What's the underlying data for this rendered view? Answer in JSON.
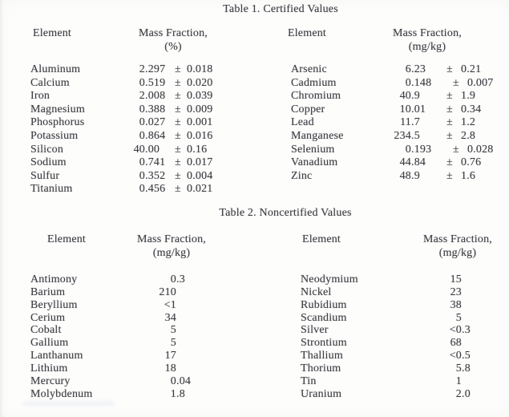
{
  "page": {
    "background": "#fdfdfc",
    "ink_color": "#3f4045"
  },
  "pm_symbol": "±",
  "table1": {
    "title": "Table 1. Certified Values",
    "panels": [
      {
        "element_header": "Element",
        "mass_fraction_header": "Mass Fraction,",
        "unit": "(%)",
        "rows": [
          {
            "element": "Aluminum",
            "value": "2.297",
            "uncertainty": "0.018"
          },
          {
            "element": "Calcium",
            "value": "0.519",
            "uncertainty": "0.020"
          },
          {
            "element": "Iron",
            "value": "2.008",
            "uncertainty": "0.039"
          },
          {
            "element": "Magnesium",
            "value": "0.388",
            "uncertainty": "0.009"
          },
          {
            "element": "Phosphorus",
            "value": "0.027",
            "uncertainty": "0.001"
          },
          {
            "element": "Potassium",
            "value": "0.864",
            "uncertainty": "0.016"
          },
          {
            "element": "Silicon",
            "value": "40.00",
            "uncertainty": "0.16"
          },
          {
            "element": "Sodium",
            "value": "0.741",
            "uncertainty": "0.017"
          },
          {
            "element": "Sulfur",
            "value": "0.352",
            "uncertainty": "0.004"
          },
          {
            "element": "Titanium",
            "value": "0.456",
            "uncertainty": "0.021"
          }
        ]
      },
      {
        "element_header": "Element",
        "mass_fraction_header": "Mass Fraction,",
        "unit": "(mg/kg)",
        "rows": [
          {
            "element": "Arsenic",
            "value": "6.23",
            "uncertainty": "0.21"
          },
          {
            "element": "Cadmium",
            "value": "0.148",
            "uncertainty": "0.007"
          },
          {
            "element": "Chromium",
            "value": "40.9",
            "uncertainty": "1.9"
          },
          {
            "element": "Copper",
            "value": "10.01",
            "uncertainty": "0.34"
          },
          {
            "element": "Lead",
            "value": "11.7",
            "uncertainty": "1.2"
          },
          {
            "element": "Manganese",
            "value": "234.5",
            "uncertainty": "2.8"
          },
          {
            "element": "Selenium",
            "value": "0.193",
            "uncertainty": "0.028"
          },
          {
            "element": "Vanadium",
            "value": "44.84",
            "uncertainty": "0.76"
          },
          {
            "element": "Zinc",
            "value": "48.9",
            "uncertainty": "1.6"
          }
        ]
      }
    ]
  },
  "table2": {
    "title": "Table 2. Noncertified Values",
    "panels": [
      {
        "element_header": "Element",
        "mass_fraction_header": "Mass Fraction,",
        "unit": "(mg/kg)",
        "rows": [
          {
            "element": "Antimony",
            "value": "0.3"
          },
          {
            "element": "Barium",
            "value": "210"
          },
          {
            "element": "Beryllium",
            "value": "<1"
          },
          {
            "element": "Cerium",
            "value": "34"
          },
          {
            "element": "Cobalt",
            "value": "5"
          },
          {
            "element": "Gallium",
            "value": "5"
          },
          {
            "element": "Lanthanum",
            "value": "17"
          },
          {
            "element": "Lithium",
            "value": "18"
          },
          {
            "element": "Mercury",
            "value": "0.04"
          },
          {
            "element": "Molybdenum",
            "value": "1.8"
          }
        ]
      },
      {
        "element_header": "Element",
        "mass_fraction_header": "Mass Fraction,",
        "unit": "(mg/kg)",
        "rows": [
          {
            "element": "Neodymium",
            "value": "15"
          },
          {
            "element": "Nickel",
            "value": "23"
          },
          {
            "element": "Rubidium",
            "value": "38"
          },
          {
            "element": "Scandium",
            "value": "5"
          },
          {
            "element": "Silver",
            "value": "<0.3"
          },
          {
            "element": "Strontium",
            "value": "68"
          },
          {
            "element": "Thallium",
            "value": "<0.5"
          },
          {
            "element": "Thorium",
            "value": "5.8"
          },
          {
            "element": "Tin",
            "value": "1"
          },
          {
            "element": "Uranium",
            "value": "2.0"
          }
        ]
      }
    ]
  }
}
